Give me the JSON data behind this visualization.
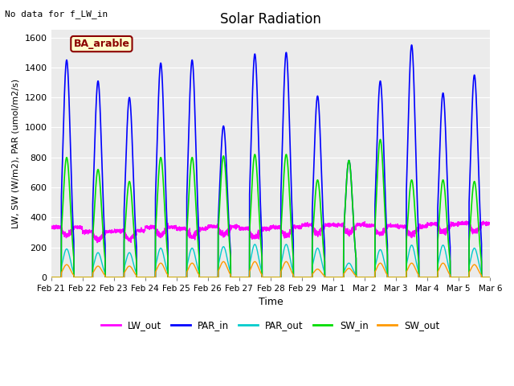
{
  "title": "Solar Radiation",
  "top_left_text": "No data for f_LW_in",
  "legend_label": "BA_arable",
  "xlabel": "Time",
  "ylabel": "LW, SW (W/m2), PAR (umol/m2/s)",
  "ylim": [
    0,
    1650
  ],
  "yticks": [
    0,
    200,
    400,
    600,
    800,
    1000,
    1200,
    1400,
    1600
  ],
  "series_colors": {
    "LW_out": "#ff00ff",
    "PAR_in": "#0000ff",
    "PAR_out": "#00cccc",
    "SW_in": "#00dd00",
    "SW_out": "#ff9900"
  },
  "series_linewidths": {
    "LW_out": 1.0,
    "PAR_in": 1.2,
    "PAR_out": 1.0,
    "SW_in": 1.2,
    "SW_out": 1.0
  },
  "n_days": 14,
  "samples_per_day": 288,
  "day_peaks": {
    "PAR_in": [
      1450,
      1310,
      1200,
      1430,
      1450,
      1010,
      1490,
      1500,
      1210,
      780,
      1310,
      1550,
      1230,
      1350
    ],
    "PAR_out": [
      190,
      165,
      165,
      195,
      195,
      205,
      220,
      220,
      195,
      95,
      185,
      215,
      215,
      195
    ],
    "SW_in": [
      800,
      720,
      640,
      800,
      800,
      810,
      820,
      820,
      650,
      780,
      920,
      650,
      650,
      640
    ],
    "SW_out": [
      85,
      75,
      75,
      95,
      95,
      105,
      105,
      105,
      55,
      60,
      95,
      95,
      95,
      85
    ],
    "LW_out_base": [
      330,
      300,
      305,
      330,
      320,
      335,
      320,
      330,
      345,
      345,
      340,
      335,
      350,
      355
    ]
  },
  "background_color": "#ebebeb",
  "plot_bg": "#ebebeb",
  "grid_color": "#ffffff"
}
